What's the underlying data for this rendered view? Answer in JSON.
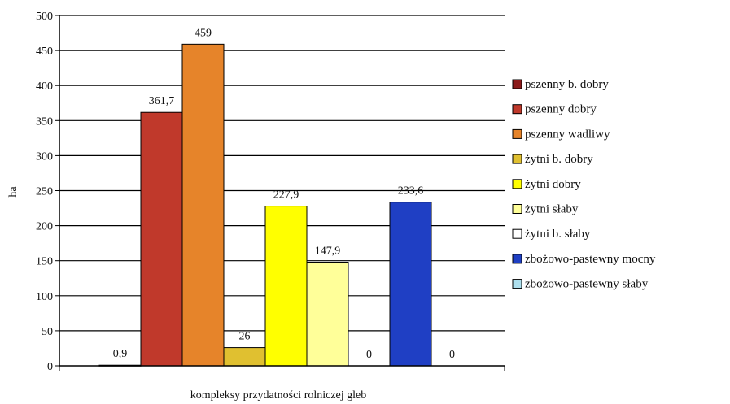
{
  "chart_data": {
    "type": "bar",
    "title": "",
    "xlabel": "kompleksy przydatności rolniczej gleb",
    "ylabel": "ha",
    "ylim": [
      0,
      500
    ],
    "yticks": [
      0,
      50,
      100,
      150,
      200,
      250,
      300,
      350,
      400,
      450,
      500
    ],
    "grid": true,
    "legend_position": "right",
    "series": [
      {
        "name": "pszenny b. dobry",
        "value": 0.9,
        "label": "0,9",
        "color": "#8b1a1a"
      },
      {
        "name": "pszenny dobry",
        "value": 361.7,
        "label": "361,7",
        "color": "#c0392b"
      },
      {
        "name": "pszenny wadliwy",
        "value": 459,
        "label": "459",
        "color": "#e6842a"
      },
      {
        "name": "żytni b. dobry",
        "value": 26,
        "label": "26",
        "color": "#e0c030"
      },
      {
        "name": "żytni dobry",
        "value": 227.9,
        "label": "227,9",
        "color": "#ffff00"
      },
      {
        "name": "żytni słaby",
        "value": 147.9,
        "label": "147,9",
        "color": "#ffff99"
      },
      {
        "name": "żytni b. słaby",
        "value": 0,
        "label": "0",
        "color": "#ffffff"
      },
      {
        "name": "zbożowo-pastewny mocny",
        "value": 233.6,
        "label": "233,6",
        "color": "#1f3fc4"
      },
      {
        "name": "zbożowo-pastewny słaby",
        "value": 0,
        "label": "0",
        "color": "#aee0ee"
      }
    ]
  }
}
